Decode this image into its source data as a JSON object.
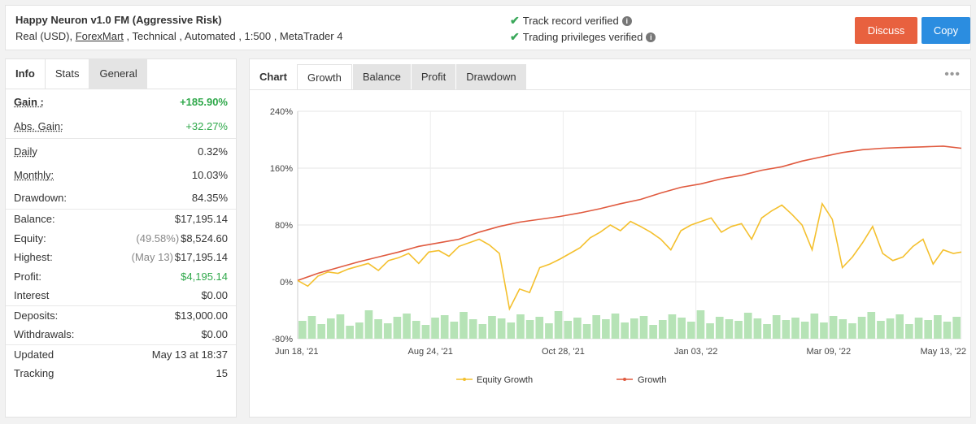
{
  "header": {
    "title": "Happy Neuron v1.0 FM (Aggressive Risk)",
    "sub_prefix": "Real (USD), ",
    "broker": "ForexMart",
    "sub_suffix": " , Technical , Automated , 1:500 , MetaTrader 4",
    "verified_track": "Track record verified",
    "verified_priv": "Trading privileges verified",
    "discuss": "Discuss",
    "copy": "Copy"
  },
  "left_tabs": [
    "Info",
    "Stats",
    "General"
  ],
  "stats": {
    "gain_label": "Gain :",
    "gain": "+185.90%",
    "abs_label": "Abs. Gain:",
    "abs": "+32.27%",
    "daily_label": "Daily",
    "daily": "0.32%",
    "monthly_label": "Monthly:",
    "monthly": "10.03%",
    "drawdown_label": "Drawdown:",
    "drawdown": "84.35%",
    "balance_label": "Balance:",
    "balance": "$17,195.14",
    "equity_label": "Equity:",
    "equity_pct": "(49.58%)",
    "equity": "$8,524.60",
    "highest_label": "Highest:",
    "highest_date": "(May 13)",
    "highest": "$17,195.14",
    "profit_label": "Profit:",
    "profit": "$4,195.14",
    "interest_label": "Interest",
    "interest": "$0.00",
    "deposits_label": "Deposits:",
    "deposits": "$13,000.00",
    "withdrawals_label": "Withdrawals:",
    "withdrawals": "$0.00",
    "updated_label": "Updated",
    "updated": "May 13 at 18:37",
    "tracking_label": "Tracking",
    "tracking": "15"
  },
  "chart_tabs": [
    "Chart",
    "Growth",
    "Balance",
    "Profit",
    "Drawdown"
  ],
  "colors": {
    "growth": "#e05a3f",
    "equity": "#f4c02e",
    "bars": "#b6e3b6"
  },
  "chart_data": {
    "type": "line",
    "ylim": [
      -80,
      240
    ],
    "y_ticks": [
      "240%",
      "160%",
      "80%",
      "0%",
      "-80%"
    ],
    "x_ticks": [
      "Jun 18, '21",
      "Aug 24, '21",
      "Oct 28, '21",
      "Jan 03, '22",
      "Mar 09, '22",
      "May 13, '22"
    ],
    "series": [
      {
        "name": "Growth",
        "x": [
          0,
          10,
          20,
          30,
          40,
          50,
          60,
          70,
          80,
          90,
          100,
          110,
          120,
          130,
          140,
          150,
          160,
          170,
          180,
          190,
          200,
          210,
          220,
          230,
          240,
          250,
          260,
          270,
          280,
          290,
          300,
          310,
          320,
          329
        ],
        "y": [
          2,
          12,
          20,
          28,
          35,
          42,
          50,
          55,
          60,
          70,
          78,
          84,
          88,
          92,
          97,
          103,
          110,
          116,
          125,
          133,
          138,
          145,
          150,
          157,
          162,
          170,
          176,
          182,
          186,
          188,
          189,
          190,
          191,
          188
        ]
      },
      {
        "name": "Equity Growth",
        "x": [
          0,
          5,
          10,
          15,
          20,
          25,
          30,
          35,
          40,
          45,
          50,
          55,
          60,
          65,
          70,
          75,
          80,
          85,
          90,
          95,
          100,
          105,
          110,
          115,
          120,
          125,
          130,
          135,
          140,
          145,
          150,
          155,
          160,
          165,
          170,
          175,
          180,
          185,
          190,
          195,
          200,
          205,
          210,
          215,
          220,
          225,
          230,
          235,
          240,
          245,
          250,
          255,
          260,
          265,
          270,
          275,
          280,
          285,
          290,
          295,
          300,
          305,
          310,
          315,
          320,
          325,
          329
        ],
        "y": [
          2,
          -6,
          8,
          14,
          12,
          18,
          22,
          26,
          16,
          30,
          34,
          40,
          26,
          42,
          44,
          36,
          50,
          55,
          60,
          52,
          40,
          -38,
          -10,
          -15,
          20,
          25,
          32,
          40,
          48,
          62,
          70,
          80,
          72,
          85,
          78,
          70,
          60,
          45,
          72,
          80,
          85,
          90,
          70,
          78,
          82,
          60,
          90,
          100,
          108,
          95,
          80,
          45,
          110,
          88,
          20,
          35,
          55,
          78,
          40,
          30,
          35,
          50,
          60,
          25,
          45,
          40,
          42
        ]
      }
    ],
    "volume_bars": [
      22,
      28,
      18,
      25,
      30,
      16,
      20,
      35,
      24,
      19,
      27,
      31,
      22,
      17,
      26,
      29,
      21,
      33,
      24,
      18,
      28,
      25,
      20,
      30,
      23,
      27,
      19,
      34,
      22,
      26,
      18,
      29,
      24,
      31,
      20,
      25,
      28,
      17,
      23,
      30,
      26,
      21,
      35,
      19,
      27,
      24,
      22,
      32,
      25,
      18,
      29,
      23,
      26,
      21,
      31,
      20,
      28,
      24,
      19,
      27,
      33,
      22,
      25,
      30,
      18,
      26,
      23,
      29,
      21,
      27
    ],
    "legend": [
      "Equity Growth",
      "Growth"
    ]
  }
}
